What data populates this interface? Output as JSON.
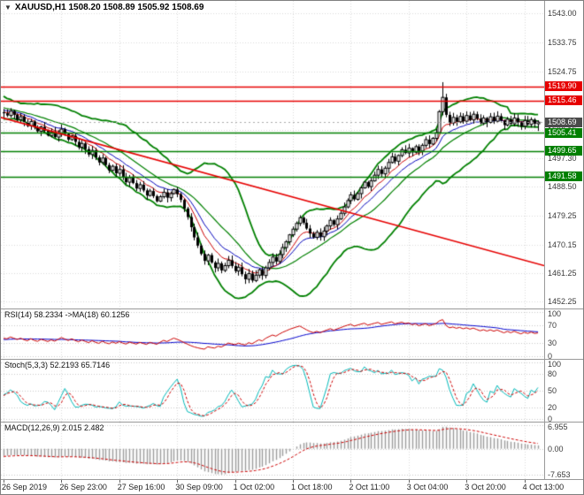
{
  "header": {
    "symbol_line": "XAUUSD,H1 1508.20 1508.89 1505.92 1508.69"
  },
  "colors": {
    "grid": "#d9d9d9",
    "candle_up": "#ffffff",
    "candle_down": "#000000",
    "candle_outline": "#000000",
    "bollinger": "#008000",
    "ma_fast": "#cc0000",
    "ma_slow": "#0000bb",
    "resistance": "#e60000",
    "support": "#007f00",
    "trendline": "#e60000",
    "current_price_tag": "#4a4a4a",
    "rsi": "#cc0000",
    "rsi_ma": "#0000cc",
    "stoch_k": "#00b8b8",
    "stoch_d": "#cc0000",
    "macd_hist": "#9c9c9c",
    "macd_signal": "#cc0000"
  },
  "price_axis": {
    "ticks": [
      {
        "label": "1543.00",
        "value": 1543.0
      },
      {
        "label": "1533.75",
        "value": 1533.75
      },
      {
        "label": "1524.75",
        "value": 1524.75
      },
      {
        "label": "1506.15",
        "value": 1506.15
      },
      {
        "label": "1497.30",
        "value": 1497.3
      },
      {
        "label": "1488.50",
        "value": 1488.5
      },
      {
        "label": "1479.25",
        "value": 1479.25
      },
      {
        "label": "1470.15",
        "value": 1470.15
      },
      {
        "label": "1461.25",
        "value": 1461.25
      },
      {
        "label": "1452.25",
        "value": 1452.25
      }
    ],
    "tags": [
      {
        "label": "1519.90",
        "value": 1519.9,
        "color": "#e60000"
      },
      {
        "label": "1515.46",
        "value": 1515.46,
        "color": "#e60000"
      },
      {
        "label": "1508.69",
        "value": 1508.69,
        "color": "#4a4a4a"
      },
      {
        "label": "1505.41",
        "value": 1505.41,
        "color": "#007f00"
      },
      {
        "label": "1499.65",
        "value": 1499.65,
        "color": "#007f00"
      },
      {
        "label": "1491.58",
        "value": 1491.58,
        "color": "#007f00"
      }
    ]
  },
  "chart_data": {
    "type": "candlestick",
    "symbol": "XAUUSD",
    "timeframe": "H1",
    "last_bar": {
      "open": 1508.2,
      "high": 1508.89,
      "low": 1505.92,
      "close": 1508.69
    },
    "price_range": [
      1450.0,
      1546.9
    ],
    "x_labels": [
      "26 Sep 2019",
      "26 Sep 23:00",
      "27 Sep 16:00",
      "30 Sep 09:00",
      "1 Oct 02:00",
      "1 Oct 18:00",
      "2 Oct 11:00",
      "3 Oct 04:00",
      "3 Oct 20:00",
      "4 Oct 13:00"
    ],
    "x_label_indices": [
      0,
      17,
      34,
      51,
      68,
      85,
      102,
      119,
      136,
      153
    ],
    "warmup_closes": [
      1524.0,
      1522.4,
      1523.6,
      1521.8,
      1523.0,
      1521.2,
      1522.4,
      1520.6,
      1521.8,
      1519.5,
      1517.8,
      1519.2,
      1516.9,
      1518.4,
      1516.0,
      1517.3,
      1515.1,
      1516.4,
      1514.2,
      1515.6,
      1513.4,
      1514.8,
      1512.6,
      1514.0,
      1512.2,
      1513.6,
      1511.8,
      1513.0,
      1511.4,
      1512.6,
      1511.0,
      1512.4,
      1510.6,
      1511.8
    ],
    "closes": [
      1511.5,
      1510.8,
      1512.2,
      1511.0,
      1509.5,
      1510.4,
      1508.8,
      1507.5,
      1508.9,
      1507.0,
      1505.8,
      1507.2,
      1506.0,
      1504.5,
      1505.6,
      1504.0,
      1505.2,
      1506.5,
      1505.0,
      1503.2,
      1504.4,
      1502.5,
      1500.8,
      1502.0,
      1500.2,
      1498.5,
      1499.8,
      1497.6,
      1496.0,
      1497.4,
      1495.2,
      1493.5,
      1494.8,
      1492.6,
      1493.8,
      1491.5,
      1489.8,
      1491.2,
      1489.5,
      1487.8,
      1489.0,
      1487.2,
      1485.6,
      1487.0,
      1485.4,
      1483.8,
      1485.2,
      1486.6,
      1484.9,
      1486.2,
      1487.5,
      1486.0,
      1484.2,
      1481.5,
      1478.8,
      1475.6,
      1472.4,
      1469.8,
      1467.2,
      1465.0,
      1466.8,
      1464.5,
      1462.8,
      1464.2,
      1462.0,
      1463.5,
      1465.2,
      1463.4,
      1461.8,
      1463.0,
      1460.8,
      1459.2,
      1461.0,
      1458.8,
      1460.5,
      1462.2,
      1460.4,
      1462.8,
      1464.5,
      1466.2,
      1464.8,
      1467.0,
      1469.2,
      1471.0,
      1473.2,
      1475.0,
      1476.8,
      1478.6,
      1477.0,
      1475.2,
      1473.6,
      1472.4,
      1474.0,
      1472.6,
      1474.4,
      1476.0,
      1477.8,
      1476.4,
      1478.2,
      1480.0,
      1482.0,
      1484.0,
      1485.8,
      1484.4,
      1486.2,
      1488.0,
      1489.8,
      1488.4,
      1490.2,
      1492.0,
      1493.8,
      1492.4,
      1494.2,
      1496.0,
      1497.8,
      1496.4,
      1498.2,
      1500.0,
      1499.0,
      1500.5,
      1499.2,
      1501.0,
      1499.6,
      1501.4,
      1503.2,
      1501.8,
      1503.6,
      1505.4,
      1512.0,
      1516.5,
      1511.0,
      1508.5,
      1510.2,
      1508.8,
      1510.5,
      1509.0,
      1510.8,
      1509.4,
      1511.2,
      1509.8,
      1508.4,
      1510.0,
      1508.6,
      1510.4,
      1509.0,
      1510.6,
      1509.2,
      1507.8,
      1509.6,
      1508.2,
      1510.0,
      1508.6,
      1507.4,
      1509.2,
      1508.0,
      1509.5,
      1508.2,
      1508.69
    ],
    "hi_overrides": {
      "129": 1521.3,
      "157": 1508.89
    },
    "lo_overrides": {
      "157": 1505.92
    },
    "overlays": {
      "bollinger": {
        "period": 20,
        "deviation": 2
      },
      "ma_fast_period": 8,
      "ma_slow_period": 13,
      "trendline": {
        "start_price": 1510.2,
        "end_price": 1463.5
      },
      "hlines": [
        {
          "price": 1519.9,
          "color": "#e60000"
        },
        {
          "price": 1515.46,
          "color": "#e60000"
        },
        {
          "price": 1505.41,
          "color": "#007f00"
        },
        {
          "price": 1499.65,
          "color": "#007f00"
        },
        {
          "price": 1491.58,
          "color": "#007f00"
        }
      ],
      "current_price": 1508.69
    },
    "indicators": [
      {
        "name": "RSI",
        "label": "RSI(14) 58.2334  ->MA(18) 60.1256",
        "period": 14,
        "ma_period": 18,
        "value": 58.2334,
        "ma_value": 60.1256,
        "range": [
          0,
          100
        ],
        "ticks": [
          {
            "label": "100",
            "value": 100
          },
          {
            "label": "70",
            "value": 70
          },
          {
            "label": "30",
            "value": 30
          },
          {
            "label": "0",
            "value": 0
          }
        ]
      },
      {
        "name": "Stochastic",
        "label": "Stoch(5,3,3) 52.2193 65.7146",
        "k": 5,
        "d": 3,
        "slowing": 3,
        "value_k": 52.2193,
        "value_d": 65.7146,
        "range": [
          0,
          100
        ],
        "ticks": [
          {
            "label": "100",
            "value": 100
          },
          {
            "label": "80",
            "value": 80
          },
          {
            "label": "50",
            "value": 50
          },
          {
            "label": "20",
            "value": 20
          },
          {
            "label": "0",
            "value": 0
          }
        ]
      },
      {
        "name": "MACD",
        "label": "MACD(12,26,9) 2.015 2.482",
        "fast": 12,
        "slow": 26,
        "signal": 9,
        "value": 2.015,
        "signal_value": 2.482,
        "range": [
          -7.653,
          6.955
        ],
        "ticks": [
          {
            "label": "6.955",
            "value": 6.955
          },
          {
            "label": "0.00",
            "value": 0
          },
          {
            "label": "-7.653",
            "value": -7.653
          }
        ]
      }
    ]
  }
}
